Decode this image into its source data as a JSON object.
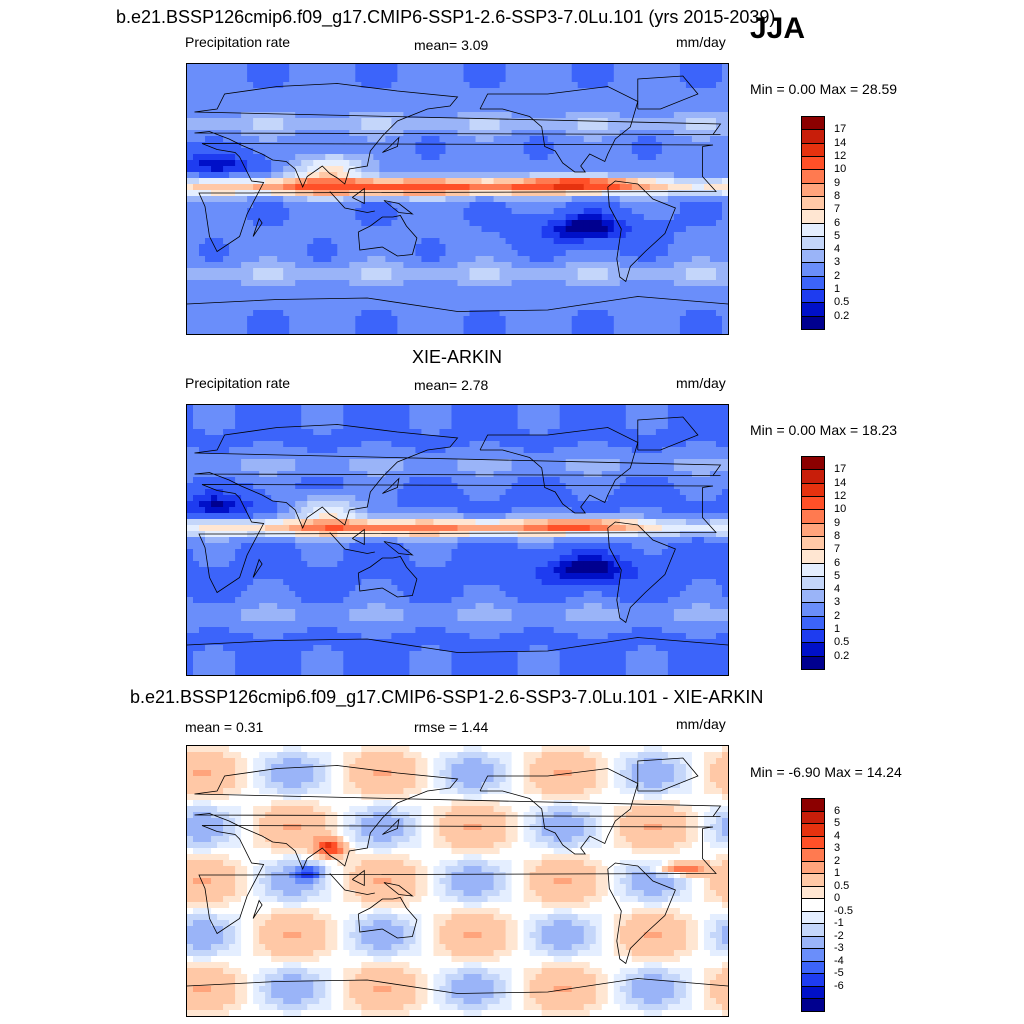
{
  "season": "JJA",
  "colors": {
    "seq": [
      "#00008f",
      "#0010c8",
      "#1e3cf0",
      "#3c64fa",
      "#6a8efa",
      "#9ab4f8",
      "#c4d6fa",
      "#e4eeff",
      "#ffe6d2",
      "#ffc8a6",
      "#ffa47c",
      "#ff7a50",
      "#ff5028",
      "#e6320f",
      "#c81e0a",
      "#8c0000"
    ],
    "div": [
      "#00008f",
      "#0010c8",
      "#1e3cf0",
      "#3c64fa",
      "#6a8efa",
      "#9ab4f8",
      "#c4d6fa",
      "#e4eeff",
      "#ffffff",
      "#ffe6d2",
      "#ffc8a6",
      "#ffa47c",
      "#ff7a50",
      "#ff5028",
      "#e6320f",
      "#c81e0a",
      "#8c0000"
    ]
  },
  "panels": [
    {
      "title": "b.e21.BSSP126cmip6.f09_g17.CMIP6-SSP1-2.6-SSP3-7.0Lu.101 (yrs 2015-2039)",
      "left_label": "Precipitation rate",
      "mid_label": "mean=   3.09",
      "units": "mm/day",
      "minmax": "Min =   0.00 Max =  28.59",
      "levels": [
        "17",
        "14",
        "12",
        "10",
        "9",
        "8",
        "7",
        "6",
        "5",
        "4",
        "3",
        "2",
        "1",
        "0.5",
        "0.2"
      ]
    },
    {
      "title": "XIE-ARKIN",
      "left_label": "Precipitation rate",
      "mid_label": "mean=   2.78",
      "units": "mm/day",
      "minmax": "Min =   0.00 Max =  18.23",
      "levels": [
        "17",
        "14",
        "12",
        "10",
        "9",
        "8",
        "7",
        "6",
        "5",
        "4",
        "3",
        "2",
        "1",
        "0.5",
        "0.2"
      ]
    },
    {
      "title": "b.e21.BSSP126cmip6.f09_g17.CMIP6-SSP1-2.6-SSP3-7.0Lu.101 - XIE-ARKIN",
      "left_label": "mean =   0.31",
      "mid_label": "rmse =   1.44",
      "units": "mm/day",
      "minmax": "Min =  -6.90 Max =  14.24",
      "levels": [
        "6",
        "5",
        "4",
        "3",
        "2",
        "1",
        "0.5",
        "0",
        "-0.5",
        "-1",
        "-2",
        "-3",
        "-4",
        "-5",
        "-6"
      ]
    }
  ],
  "chart_data": [
    {
      "type": "heatmap",
      "title": "b.e21.BSSP126cmip6.f09_g17.CMIP6-SSP1-2.6-SSP3-7.0Lu.101 (yrs 2015-2039)",
      "variable": "Precipitation rate",
      "units": "mm/day",
      "mean": 3.09,
      "min": 0.0,
      "max": 28.59,
      "contour_levels": [
        0.2,
        0.5,
        1,
        2,
        3,
        4,
        5,
        6,
        7,
        8,
        9,
        10,
        12,
        14,
        17
      ],
      "colorscale": "sequential blue-white-red"
    },
    {
      "type": "heatmap",
      "title": "XIE-ARKIN",
      "variable": "Precipitation rate",
      "units": "mm/day",
      "mean": 2.78,
      "min": 0.0,
      "max": 18.23,
      "contour_levels": [
        0.2,
        0.5,
        1,
        2,
        3,
        4,
        5,
        6,
        7,
        8,
        9,
        10,
        12,
        14,
        17
      ],
      "colorscale": "sequential blue-white-red"
    },
    {
      "type": "heatmap",
      "title": "b.e21.BSSP126cmip6.f09_g17.CMIP6-SSP1-2.6-SSP3-7.0Lu.101 - XIE-ARKIN",
      "units": "mm/day",
      "mean": 0.31,
      "rmse": 1.44,
      "min": -6.9,
      "max": 14.24,
      "contour_levels": [
        -6,
        -5,
        -4,
        -3,
        -2,
        -1,
        -0.5,
        0,
        0.5,
        1,
        2,
        3,
        4,
        5,
        6
      ],
      "colorscale": "diverging blue-white-red"
    }
  ]
}
